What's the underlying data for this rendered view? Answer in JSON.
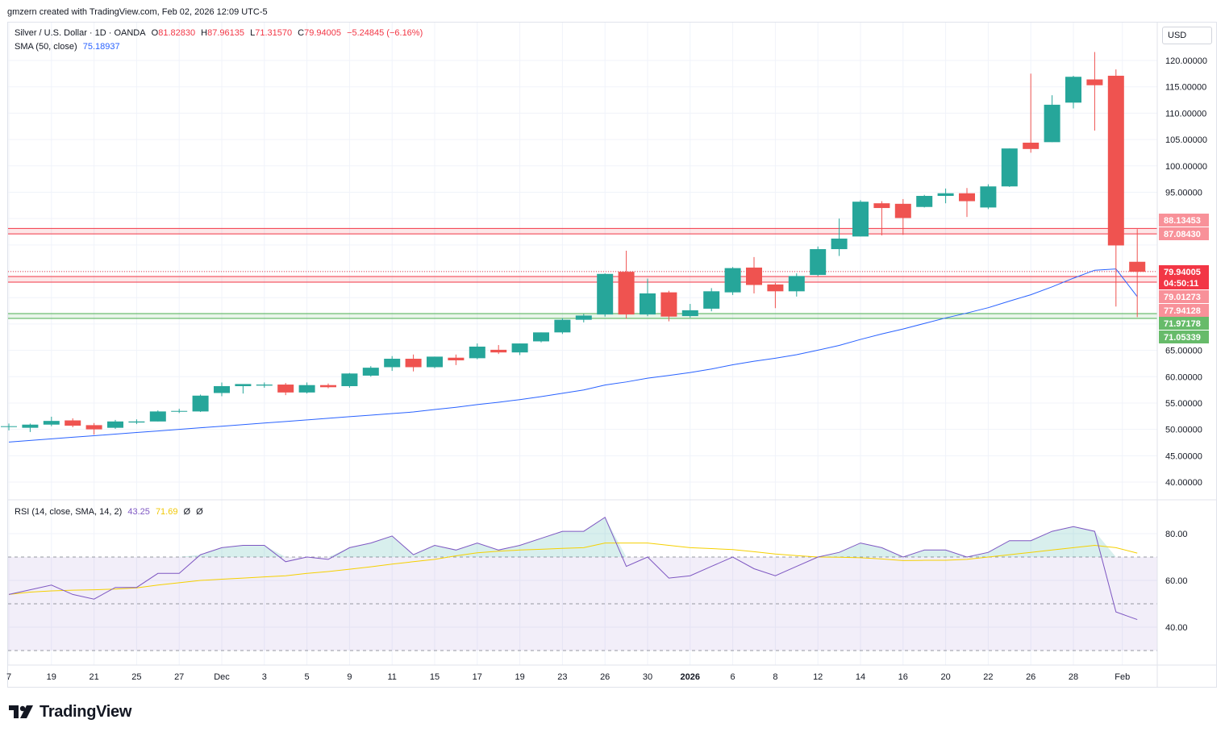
{
  "header": {
    "caption": "gmzern created with TradingView.com, Feb 02, 2026 12:09 UTC-5"
  },
  "legend": {
    "symbol": "Silver / U.S. Dollar · 1D · OANDA",
    "o_label": "O",
    "o_value": "81.82830",
    "h_label": "H",
    "h_value": "87.96135",
    "l_label": "L",
    "l_value": "71.31570",
    "c_label": "C",
    "c_value": "79.94005",
    "change": "−5.24845 (−6.16%)",
    "sma_label": "SMA (50, close)",
    "sma_value": "75.18937"
  },
  "rsi_legend": {
    "label": "RSI (14, close, SMA, 14, 2)",
    "rsi_value": "43.25",
    "rsi_sma_value": "71.69",
    "extra1": "Ø",
    "extra2": "Ø"
  },
  "currency_button": "USD",
  "brand": "TradingView",
  "colors": {
    "up": "#26a69a",
    "down": "#ef5350",
    "sma": "#2962ff",
    "rsi": "#7e57c2",
    "rsi_sma": "#f5d000",
    "resistance": "#f23645",
    "support": "#4caf50"
  },
  "price_labels": [
    {
      "text": "88.13453",
      "price": 88.13453,
      "kind": "resistance"
    },
    {
      "text": "87.08430",
      "price": 87.0843,
      "kind": "resistance"
    },
    {
      "text": "79.94005",
      "price": 79.94005,
      "kind": "current"
    },
    {
      "text": "04:50:11",
      "price": 79.94005,
      "kind": "countdown"
    },
    {
      "text": "79.01273",
      "price": 79.01273,
      "kind": "resistance"
    },
    {
      "text": "77.94128",
      "price": 77.94128,
      "kind": "resistance"
    },
    {
      "text": "71.97178",
      "price": 71.97178,
      "kind": "support"
    },
    {
      "text": "71.05339",
      "price": 71.05339,
      "kind": "support"
    }
  ],
  "chart_data": [
    {
      "type": "candlestick",
      "title": "Silver / U.S. Dollar · 1D · OANDA",
      "ylim": [
        36,
        123
      ],
      "y_ticks": [
        "40.00000",
        "45.00000",
        "50.00000",
        "55.00000",
        "60.00000",
        "65.00000",
        "95.00000",
        "100.00000",
        "105.00000",
        "110.00000",
        "115.00000",
        "120.00000"
      ],
      "y_tick_values": [
        40,
        45,
        50,
        55,
        60,
        65,
        95,
        100,
        105,
        110,
        115,
        120
      ],
      "x_ticks": [
        "7",
        "19",
        "21",
        "25",
        "27",
        "Dec",
        "3",
        "5",
        "9",
        "11",
        "15",
        "17",
        "19",
        "23",
        "26",
        "30",
        "2026",
        "6",
        "8",
        "12",
        "14",
        "16",
        "20",
        "22",
        "26",
        "28",
        "Feb"
      ],
      "x_tick_index": [
        0,
        2,
        4,
        6,
        8,
        10,
        12,
        14,
        16,
        18,
        20,
        22,
        24,
        26,
        28,
        30,
        32,
        34,
        36,
        38,
        40,
        42,
        44,
        46,
        48,
        50,
        52.3
      ],
      "candles": [
        {
          "o": 50.5,
          "h": 51.1,
          "l": 49.8,
          "c": 50.6
        },
        {
          "o": 50.3,
          "h": 51.1,
          "l": 49.5,
          "c": 50.9
        },
        {
          "o": 50.9,
          "h": 52.4,
          "l": 50.6,
          "c": 51.6
        },
        {
          "o": 51.7,
          "h": 52.1,
          "l": 50.4,
          "c": 50.7
        },
        {
          "o": 50.8,
          "h": 51.2,
          "l": 49.0,
          "c": 50.0
        },
        {
          "o": 50.3,
          "h": 51.8,
          "l": 50.1,
          "c": 51.5
        },
        {
          "o": 51.3,
          "h": 51.9,
          "l": 51.0,
          "c": 51.5
        },
        {
          "o": 51.5,
          "h": 53.6,
          "l": 51.5,
          "c": 53.4
        },
        {
          "o": 53.4,
          "h": 53.9,
          "l": 53.1,
          "c": 53.5
        },
        {
          "o": 53.4,
          "h": 56.6,
          "l": 53.3,
          "c": 56.4
        },
        {
          "o": 56.9,
          "h": 58.9,
          "l": 56.3,
          "c": 58.2
        },
        {
          "o": 58.2,
          "h": 58.5,
          "l": 56.8,
          "c": 58.6
        },
        {
          "o": 58.3,
          "h": 58.9,
          "l": 57.9,
          "c": 58.5
        },
        {
          "o": 58.5,
          "h": 58.8,
          "l": 56.5,
          "c": 57.0
        },
        {
          "o": 57.0,
          "h": 58.9,
          "l": 56.8,
          "c": 58.4
        },
        {
          "o": 58.4,
          "h": 58.7,
          "l": 57.8,
          "c": 58.0
        },
        {
          "o": 58.2,
          "h": 60.7,
          "l": 57.9,
          "c": 60.6
        },
        {
          "o": 60.2,
          "h": 62.0,
          "l": 60.0,
          "c": 61.7
        },
        {
          "o": 61.8,
          "h": 63.9,
          "l": 61.1,
          "c": 63.4
        },
        {
          "o": 63.4,
          "h": 64.2,
          "l": 61.0,
          "c": 61.8
        },
        {
          "o": 61.8,
          "h": 63.8,
          "l": 61.6,
          "c": 63.8
        },
        {
          "o": 63.6,
          "h": 64.2,
          "l": 62.2,
          "c": 63.1
        },
        {
          "o": 63.5,
          "h": 66.3,
          "l": 63.3,
          "c": 65.7
        },
        {
          "o": 65.1,
          "h": 66.0,
          "l": 64.3,
          "c": 64.6
        },
        {
          "o": 64.6,
          "h": 66.3,
          "l": 64.1,
          "c": 66.3
        },
        {
          "o": 66.7,
          "h": 68.4,
          "l": 66.5,
          "c": 68.4
        },
        {
          "o": 68.4,
          "h": 71.1,
          "l": 68.1,
          "c": 70.8
        },
        {
          "o": 70.8,
          "h": 71.9,
          "l": 70.3,
          "c": 71.6
        },
        {
          "o": 71.8,
          "h": 79.6,
          "l": 71.4,
          "c": 79.5
        },
        {
          "o": 79.9,
          "h": 83.9,
          "l": 71.0,
          "c": 71.8
        },
        {
          "o": 71.8,
          "h": 78.6,
          "l": 71.5,
          "c": 75.8
        },
        {
          "o": 76.0,
          "h": 76.3,
          "l": 70.5,
          "c": 71.4
        },
        {
          "o": 71.5,
          "h": 73.8,
          "l": 71.2,
          "c": 72.6
        },
        {
          "o": 72.9,
          "h": 76.8,
          "l": 72.4,
          "c": 76.2
        },
        {
          "o": 76.0,
          "h": 80.8,
          "l": 75.5,
          "c": 80.6
        },
        {
          "o": 80.7,
          "h": 82.7,
          "l": 75.8,
          "c": 77.4
        },
        {
          "o": 77.5,
          "h": 77.8,
          "l": 73.0,
          "c": 76.2
        },
        {
          "o": 76.2,
          "h": 79.6,
          "l": 75.2,
          "c": 79.1
        },
        {
          "o": 79.3,
          "h": 84.7,
          "l": 79.1,
          "c": 84.2
        },
        {
          "o": 84.2,
          "h": 90.0,
          "l": 82.9,
          "c": 86.2
        },
        {
          "o": 86.6,
          "h": 93.5,
          "l": 86.6,
          "c": 93.2
        },
        {
          "o": 92.9,
          "h": 93.3,
          "l": 86.8,
          "c": 92.0
        },
        {
          "o": 92.8,
          "h": 93.7,
          "l": 86.9,
          "c": 90.1
        },
        {
          "o": 92.2,
          "h": 94.5,
          "l": 92.1,
          "c": 94.3
        },
        {
          "o": 94.3,
          "h": 95.7,
          "l": 92.9,
          "c": 94.8
        },
        {
          "o": 94.8,
          "h": 95.8,
          "l": 90.3,
          "c": 93.3
        },
        {
          "o": 92.1,
          "h": 96.5,
          "l": 91.8,
          "c": 96.1
        },
        {
          "o": 96.1,
          "h": 103.3,
          "l": 96.0,
          "c": 103.3
        },
        {
          "o": 104.4,
          "h": 117.5,
          "l": 102.5,
          "c": 103.2
        },
        {
          "o": 104.5,
          "h": 113.4,
          "l": 104.5,
          "c": 111.6
        },
        {
          "o": 112.0,
          "h": 117.1,
          "l": 110.9,
          "c": 116.9
        },
        {
          "o": 116.4,
          "h": 121.6,
          "l": 106.7,
          "c": 115.3
        },
        {
          "o": 117.1,
          "h": 118.3,
          "l": 73.3,
          "c": 84.9
        },
        {
          "o": 81.8,
          "h": 88.0,
          "l": 71.3,
          "c": 79.9
        }
      ]
    },
    {
      "type": "line",
      "title": "RSI (14, close, SMA, 14, 2)",
      "ylim": [
        25,
        90
      ],
      "y_ticks": [
        "40.00",
        "60.00",
        "80.00"
      ],
      "y_tick_values": [
        40,
        60,
        80
      ],
      "bands": [
        30,
        50,
        70
      ],
      "series": [
        {
          "name": "RSI",
          "values": [
            54,
            56,
            58,
            54,
            52,
            57,
            57,
            63,
            63,
            71,
            74,
            75,
            75,
            68,
            70,
            69,
            74,
            76,
            79,
            71,
            75,
            73,
            76,
            73,
            75,
            78,
            81,
            81,
            87,
            66,
            70,
            61,
            62,
            66,
            70,
            65,
            62,
            66,
            70,
            72,
            76,
            74,
            70,
            73,
            73,
            70,
            72,
            77,
            77,
            81,
            83,
            81,
            46.5,
            43.25
          ]
        },
        {
          "name": "SMA",
          "values": [
            54,
            55,
            55.5,
            55.8,
            56,
            56.3,
            56.8,
            58,
            59,
            60,
            60.5,
            61,
            61.5,
            62,
            63,
            63.8,
            64.8,
            65.8,
            67,
            68,
            69,
            70.5,
            71.8,
            72.5,
            73,
            73.3,
            73.7,
            74,
            76,
            76,
            76,
            75,
            74,
            73.6,
            73.2,
            72.3,
            71.3,
            70.6,
            70,
            69.9,
            69.7,
            69.2,
            68.5,
            68.6,
            68.6,
            69,
            70,
            71,
            72,
            73,
            74,
            75,
            74,
            71.69
          ]
        }
      ]
    }
  ]
}
